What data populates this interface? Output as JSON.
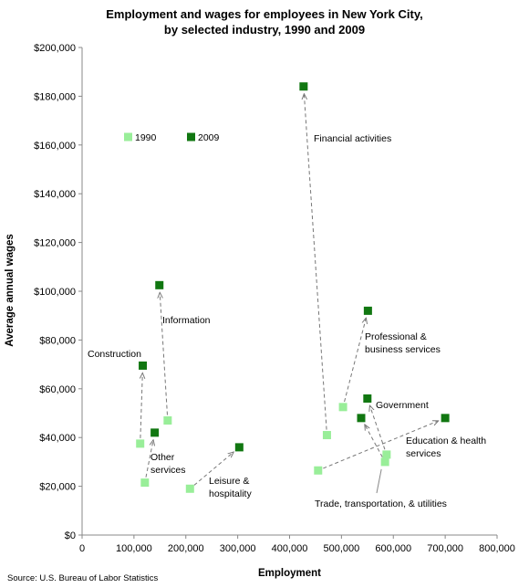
{
  "chart_data": {
    "type": "scatter",
    "title": [
      "Employment and wages for employees in New York City,",
      "by selected industry, 1990 and 2009"
    ],
    "xlabel": "Employment",
    "ylabel": "Average annual wages",
    "xlim": [
      0,
      800000
    ],
    "ylim": [
      0,
      200000
    ],
    "x_ticks": [
      0,
      100000,
      200000,
      300000,
      400000,
      500000,
      600000,
      700000,
      800000
    ],
    "x_tick_labels": [
      "0",
      "100,000",
      "200,000",
      "300,000",
      "400,000",
      "500,000",
      "600,000",
      "700,000",
      "800,000"
    ],
    "y_ticks": [
      0,
      20000,
      40000,
      60000,
      80000,
      100000,
      120000,
      140000,
      160000,
      180000,
      200000
    ],
    "y_tick_labels": [
      "$0",
      "$20,000",
      "$40,000",
      "$60,000",
      "$80,000",
      "$100,000",
      "$120,000",
      "$140,000",
      "$160,000",
      "$180,000",
      "$200,000"
    ],
    "grid": false,
    "legend_position": "top-left",
    "series": [
      {
        "name": "1990",
        "color": "#99ee99"
      },
      {
        "name": "2009",
        "color": "#117711"
      }
    ],
    "industries": [
      {
        "label": [
          "Financial activities"
        ],
        "x1990": 472000,
        "y1990": 41000,
        "x2009": 427000,
        "y2009": 184000
      },
      {
        "label": [
          "Professional &",
          "business services"
        ],
        "x1990": 503000,
        "y1990": 52500,
        "x2009": 551000,
        "y2009": 92000
      },
      {
        "label": [
          "Information"
        ],
        "x1990": 165000,
        "y1990": 47000,
        "x2009": 149000,
        "y2009": 102500
      },
      {
        "label": [
          "Construction"
        ],
        "x1990": 112000,
        "y1990": 37500,
        "x2009": 117000,
        "y2009": 69500
      },
      {
        "label": [
          "Other",
          "services"
        ],
        "x1990": 121000,
        "y1990": 21500,
        "x2009": 140000,
        "y2009": 42000
      },
      {
        "label": [
          "Leisure &",
          "hospitality"
        ],
        "x1990": 208000,
        "y1990": 19000,
        "x2009": 303000,
        "y2009": 36000
      },
      {
        "label": [
          "Government"
        ],
        "x1990": 587000,
        "y1990": 33000,
        "x2009": 550000,
        "y2009": 56000
      },
      {
        "label": [
          "Education & health",
          "services"
        ],
        "x1990": 455000,
        "y1990": 26500,
        "x2009": 700000,
        "y2009": 48000
      },
      {
        "label": [
          "Trade, transportation, & utilities"
        ],
        "x1990": 584000,
        "y1990": 30000,
        "x2009": 538000,
        "y2009": 48000
      }
    ],
    "source": "Source: U.S. Bureau of Labor Statistics"
  }
}
